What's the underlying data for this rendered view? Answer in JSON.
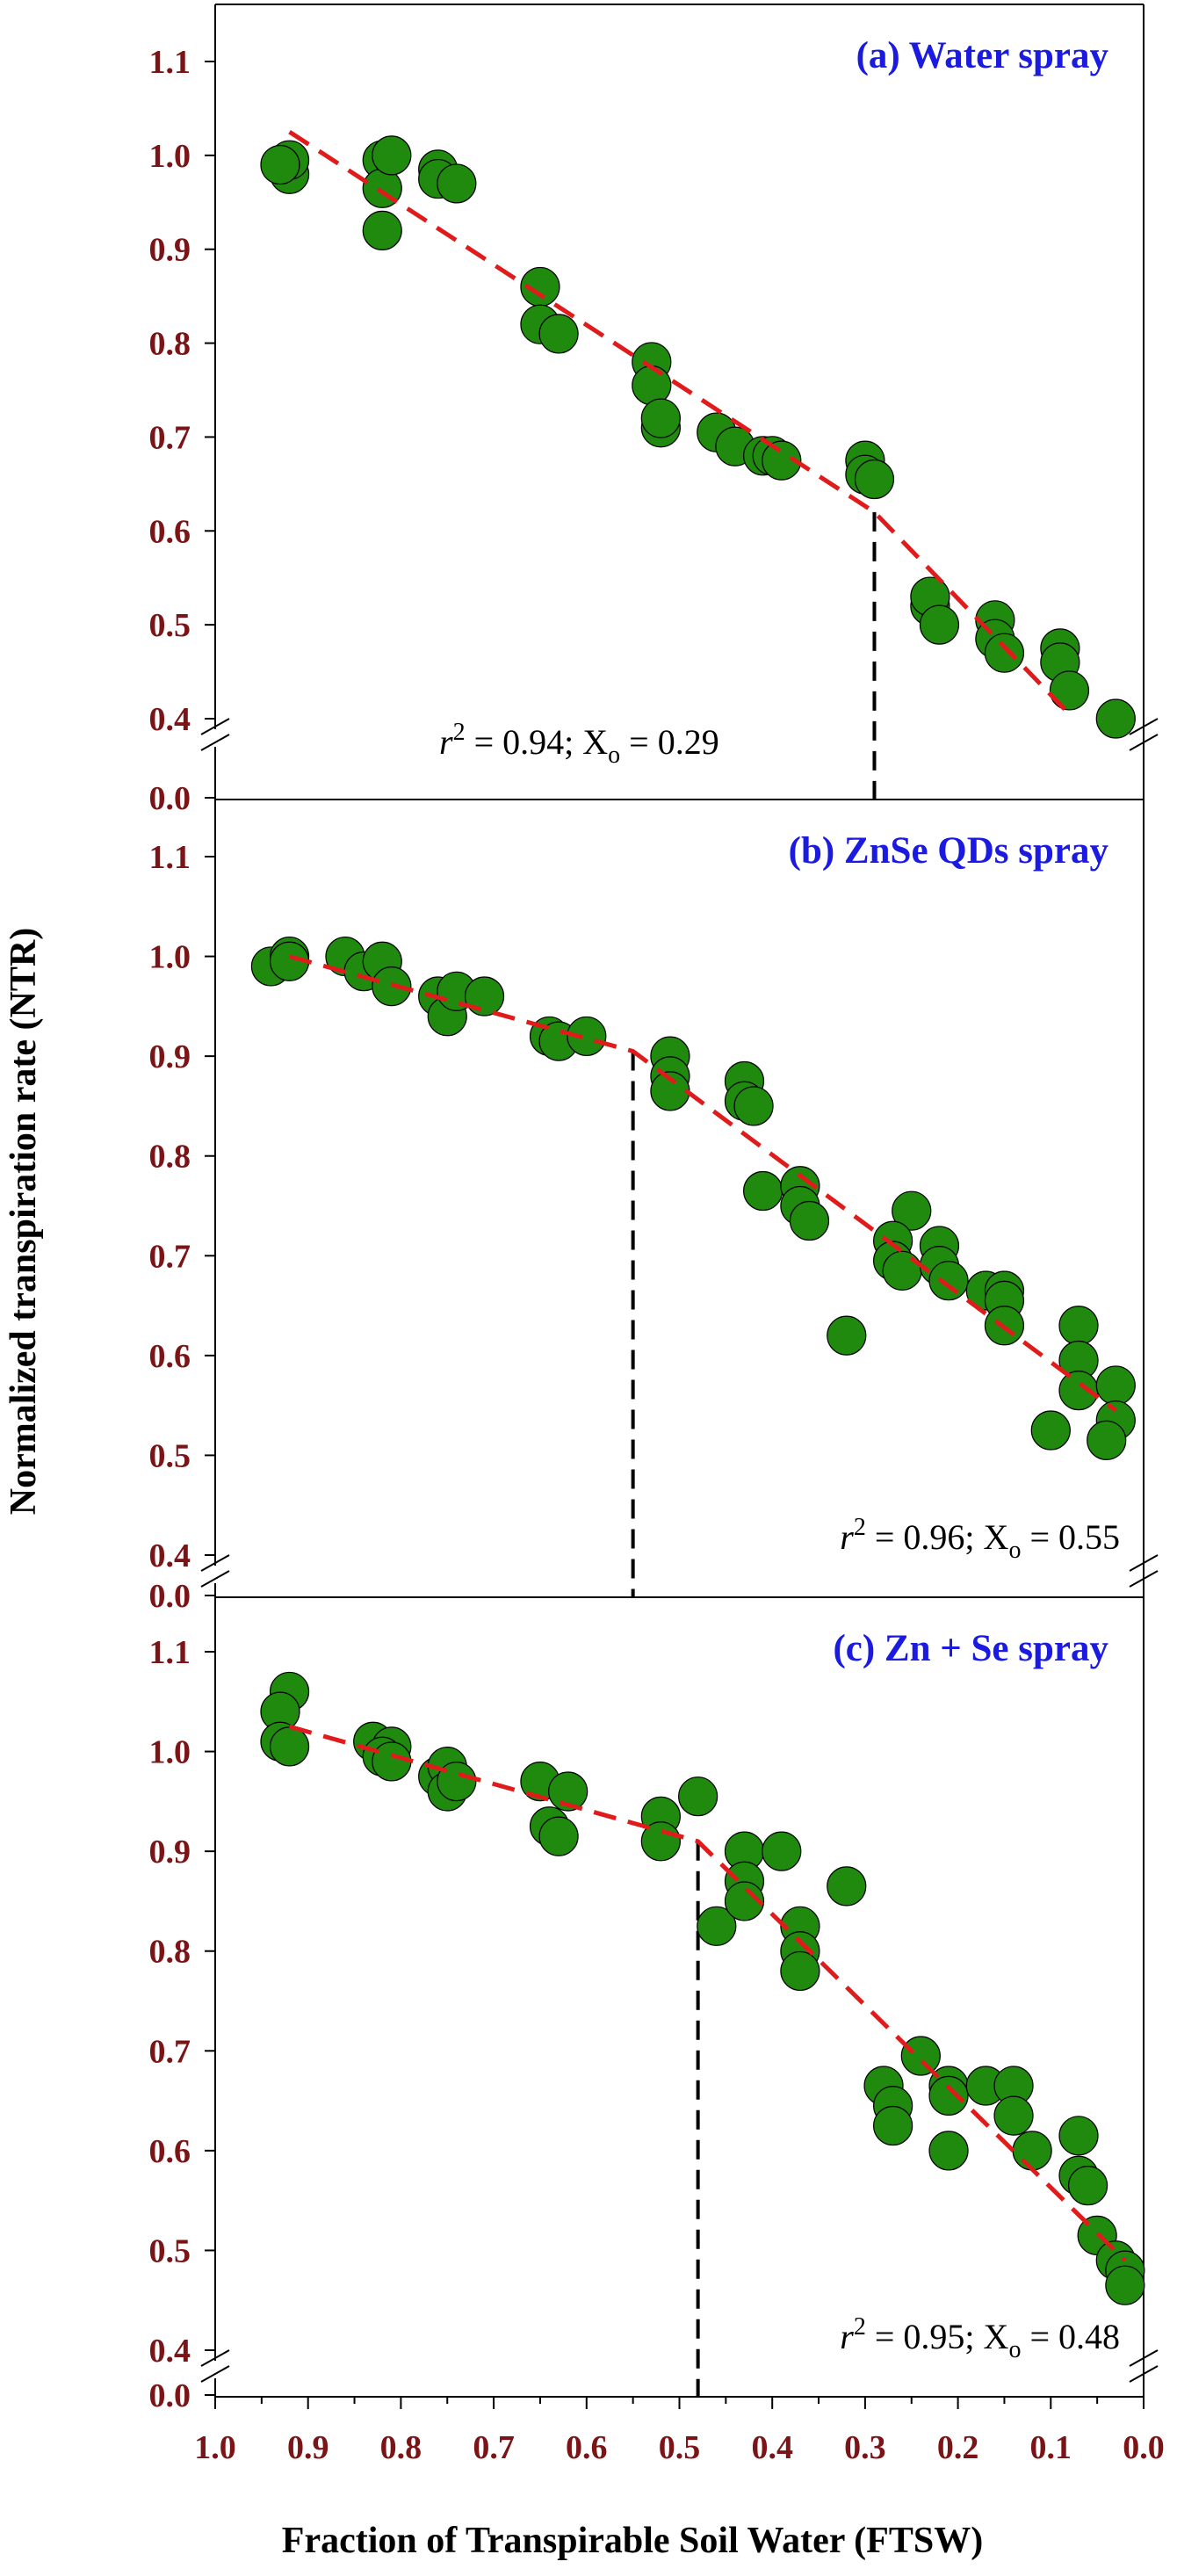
{
  "figure": {
    "ylabel": "Normalized transpiration rate (NTR)",
    "xlabel": "Fraction of Transpirable Soil Water (FTSW)",
    "x_ticks": [
      "1.0",
      "0.9",
      "0.8",
      "0.7",
      "0.6",
      "0.5",
      "0.4",
      "0.3",
      "0.2",
      "0.1",
      "0.0"
    ],
    "y_ticks": [
      "1.1",
      "1.0",
      "0.9",
      "0.8",
      "0.7",
      "0.6",
      "0.5",
      "0.4",
      "0.0"
    ],
    "colors": {
      "point_fill": "#1f8a0e",
      "fit_line": "#e01b1b",
      "breakpoint_line": "#000000",
      "tick_text": "#7a1416",
      "title_text": "#1a1ae0"
    }
  },
  "chart_data": [
    {
      "type": "scatter",
      "title": "(a) Water spray",
      "stat": {
        "r2_label": "r",
        "r2_sup": "2",
        "r2_rest": " = 0.94; X",
        "xo_sub": "o",
        "xo_rest": " = 0.29"
      },
      "xlim": [
        1.0,
        0.0
      ],
      "ylim": [
        0.4,
        1.1
      ],
      "axis_break": "y",
      "breakpoint_x": 0.29,
      "fit": [
        [
          0.92,
          1.025
        ],
        [
          0.29,
          0.62
        ],
        [
          0.08,
          0.405
        ]
      ],
      "points": [
        [
          0.92,
          0.98
        ],
        [
          0.92,
          0.995
        ],
        [
          0.93,
          0.99
        ],
        [
          0.82,
          0.92
        ],
        [
          0.82,
          0.995
        ],
        [
          0.82,
          0.965
        ],
        [
          0.81,
          1.0
        ],
        [
          0.76,
          0.985
        ],
        [
          0.76,
          0.975
        ],
        [
          0.74,
          0.97
        ],
        [
          0.65,
          0.86
        ],
        [
          0.65,
          0.82
        ],
        [
          0.63,
          0.81
        ],
        [
          0.53,
          0.78
        ],
        [
          0.53,
          0.755
        ],
        [
          0.52,
          0.71
        ],
        [
          0.52,
          0.72
        ],
        [
          0.46,
          0.705
        ],
        [
          0.44,
          0.69
        ],
        [
          0.41,
          0.68
        ],
        [
          0.4,
          0.68
        ],
        [
          0.39,
          0.675
        ],
        [
          0.3,
          0.675
        ],
        [
          0.3,
          0.66
        ],
        [
          0.29,
          0.655
        ],
        [
          0.23,
          0.52
        ],
        [
          0.23,
          0.53
        ],
        [
          0.22,
          0.5
        ],
        [
          0.16,
          0.505
        ],
        [
          0.16,
          0.485
        ],
        [
          0.15,
          0.47
        ],
        [
          0.09,
          0.475
        ],
        [
          0.09,
          0.46
        ],
        [
          0.08,
          0.43
        ],
        [
          0.03,
          0.4
        ]
      ]
    },
    {
      "type": "scatter",
      "title": "(b) ZnSe QDs spray",
      "stat": {
        "r2_label": "r",
        "r2_sup": "2",
        "r2_rest": " = 0.96; X",
        "xo_sub": "o",
        "xo_rest": " = 0.55"
      },
      "xlim": [
        1.0,
        0.0
      ],
      "ylim": [
        0.4,
        1.1
      ],
      "axis_break": "y",
      "breakpoint_x": 0.55,
      "fit": [
        [
          0.92,
          1.0
        ],
        [
          0.55,
          0.905
        ],
        [
          0.03,
          0.545
        ]
      ],
      "points": [
        [
          0.94,
          0.99
        ],
        [
          0.92,
          1.0
        ],
        [
          0.92,
          0.995
        ],
        [
          0.86,
          1.0
        ],
        [
          0.84,
          0.985
        ],
        [
          0.82,
          0.995
        ],
        [
          0.81,
          0.97
        ],
        [
          0.76,
          0.96
        ],
        [
          0.75,
          0.94
        ],
        [
          0.74,
          0.965
        ],
        [
          0.71,
          0.96
        ],
        [
          0.64,
          0.92
        ],
        [
          0.63,
          0.915
        ],
        [
          0.6,
          0.92
        ],
        [
          0.51,
          0.9
        ],
        [
          0.51,
          0.88
        ],
        [
          0.51,
          0.865
        ],
        [
          0.43,
          0.875
        ],
        [
          0.43,
          0.855
        ],
        [
          0.42,
          0.85
        ],
        [
          0.41,
          0.765
        ],
        [
          0.37,
          0.77
        ],
        [
          0.37,
          0.75
        ],
        [
          0.36,
          0.735
        ],
        [
          0.32,
          0.62
        ],
        [
          0.25,
          0.745
        ],
        [
          0.27,
          0.715
        ],
        [
          0.27,
          0.695
        ],
        [
          0.26,
          0.685
        ],
        [
          0.22,
          0.71
        ],
        [
          0.22,
          0.69
        ],
        [
          0.21,
          0.675
        ],
        [
          0.17,
          0.665
        ],
        [
          0.15,
          0.665
        ],
        [
          0.15,
          0.655
        ],
        [
          0.15,
          0.63
        ],
        [
          0.1,
          0.525
        ],
        [
          0.07,
          0.63
        ],
        [
          0.07,
          0.595
        ],
        [
          0.07,
          0.565
        ],
        [
          0.03,
          0.57
        ],
        [
          0.03,
          0.535
        ],
        [
          0.04,
          0.515
        ]
      ]
    },
    {
      "type": "scatter",
      "title": "(c) Zn + Se spray",
      "stat": {
        "r2_label": "r",
        "r2_sup": "2",
        "r2_rest": " = 0.95; X",
        "xo_sub": "o",
        "xo_rest": " = 0.48"
      },
      "xlim": [
        1.0,
        0.0
      ],
      "ylim": [
        0.4,
        1.1
      ],
      "axis_break": "y",
      "breakpoint_x": 0.48,
      "fit": [
        [
          0.92,
          1.025
        ],
        [
          0.48,
          0.91
        ],
        [
          0.02,
          0.49
        ]
      ],
      "points": [
        [
          0.92,
          1.06
        ],
        [
          0.93,
          1.04
        ],
        [
          0.93,
          1.01
        ],
        [
          0.92,
          1.005
        ],
        [
          0.83,
          1.01
        ],
        [
          0.81,
          1.005
        ],
        [
          0.82,
          0.995
        ],
        [
          0.81,
          0.99
        ],
        [
          0.76,
          0.975
        ],
        [
          0.75,
          0.985
        ],
        [
          0.75,
          0.96
        ],
        [
          0.74,
          0.97
        ],
        [
          0.65,
          0.97
        ],
        [
          0.64,
          0.925
        ],
        [
          0.63,
          0.915
        ],
        [
          0.62,
          0.96
        ],
        [
          0.52,
          0.935
        ],
        [
          0.52,
          0.91
        ],
        [
          0.48,
          0.955
        ],
        [
          0.46,
          0.825
        ],
        [
          0.43,
          0.9
        ],
        [
          0.43,
          0.87
        ],
        [
          0.43,
          0.85
        ],
        [
          0.39,
          0.9
        ],
        [
          0.37,
          0.825
        ],
        [
          0.37,
          0.8
        ],
        [
          0.37,
          0.78
        ],
        [
          0.32,
          0.865
        ],
        [
          0.28,
          0.665
        ],
        [
          0.27,
          0.645
        ],
        [
          0.27,
          0.625
        ],
        [
          0.24,
          0.695
        ],
        [
          0.21,
          0.665
        ],
        [
          0.21,
          0.655
        ],
        [
          0.21,
          0.6
        ],
        [
          0.17,
          0.665
        ],
        [
          0.14,
          0.665
        ],
        [
          0.14,
          0.635
        ],
        [
          0.12,
          0.6
        ],
        [
          0.07,
          0.615
        ],
        [
          0.07,
          0.575
        ],
        [
          0.06,
          0.565
        ],
        [
          0.05,
          0.515
        ],
        [
          0.03,
          0.49
        ],
        [
          0.02,
          0.48
        ],
        [
          0.02,
          0.465
        ]
      ]
    }
  ]
}
